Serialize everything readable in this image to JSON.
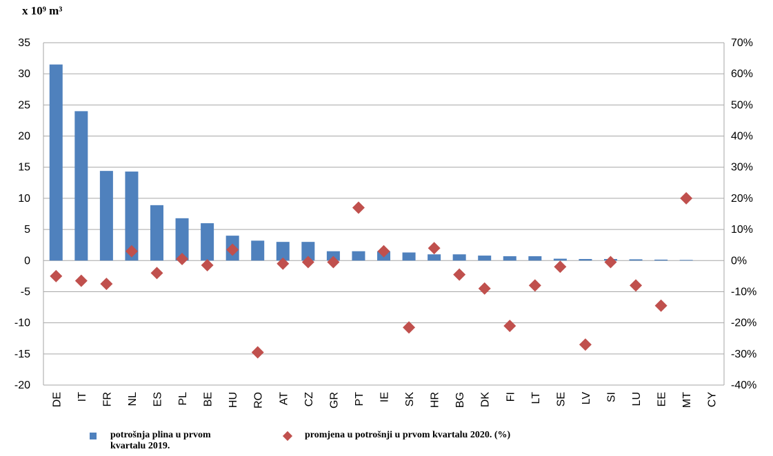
{
  "chart_data": {
    "type": "bar+scatter",
    "y_unit_label": "x 10⁹ m³",
    "categories": [
      "DE",
      "IT",
      "FR",
      "NL",
      "ES",
      "PL",
      "BE",
      "HU",
      "RO",
      "AT",
      "CZ",
      "GR",
      "PT",
      "IE",
      "SK",
      "HR",
      "BG",
      "DK",
      "FI",
      "LT",
      "SE",
      "LV",
      "SI",
      "LU",
      "EE",
      "MT",
      "CY"
    ],
    "left_axis": {
      "ylim": [
        -20,
        35
      ],
      "ticks": [
        35,
        30,
        25,
        20,
        15,
        10,
        5,
        0,
        -5,
        -10,
        -15,
        -20
      ]
    },
    "right_axis": {
      "ylim": [
        -40,
        70
      ],
      "tick_labels": [
        "70%",
        "60%",
        "50%",
        "40%",
        "30%",
        "20%",
        "10%",
        "0%",
        "-10%",
        "-20%",
        "-30%",
        "-40%"
      ]
    },
    "grid": true,
    "legend_position": "bottom",
    "series": [
      {
        "name": "potrošnja plina u prvom kvartalu 2019.",
        "type": "bar",
        "axis": "left",
        "color": "#4f81bd",
        "values": [
          31.5,
          24.0,
          14.4,
          14.3,
          8.9,
          6.8,
          6.0,
          4.0,
          3.2,
          3.0,
          3.0,
          1.5,
          1.5,
          1.5,
          1.3,
          1.0,
          1.0,
          0.8,
          0.7,
          0.7,
          0.3,
          0.25,
          0.25,
          0.2,
          0.15,
          0.1,
          0.0
        ]
      },
      {
        "name": "promjena u potrošnji u prvom kvartalu 2020. (%)",
        "type": "scatter",
        "axis": "right",
        "marker": "diamond",
        "color": "#c0504d",
        "values": [
          -5,
          -6.5,
          -7.5,
          3,
          -4,
          0.5,
          -1.5,
          3.5,
          -29.5,
          -1,
          -0.5,
          -0.5,
          17,
          3,
          -21.5,
          4,
          -4.5,
          -9,
          -21,
          -8,
          -2,
          -27,
          -0.5,
          -8,
          -14.5,
          20,
          null
        ]
      }
    ]
  }
}
